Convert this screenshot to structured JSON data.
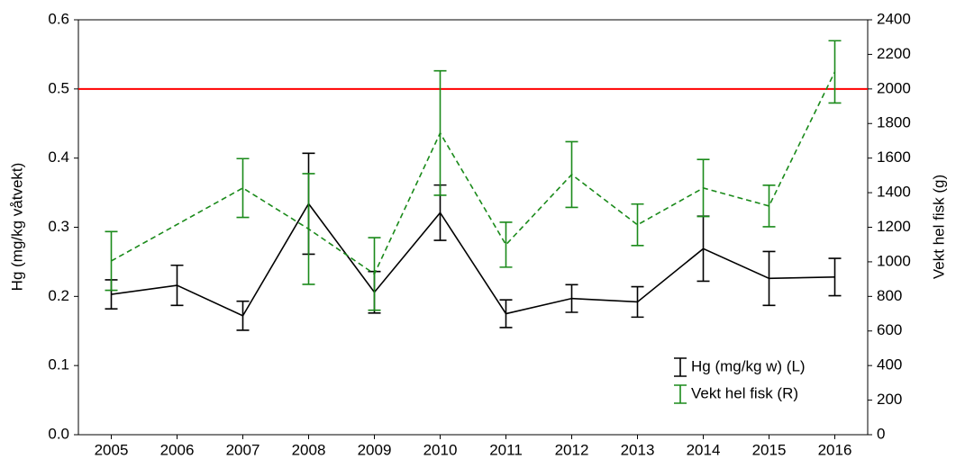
{
  "chart_data": {
    "type": "line",
    "x": [
      2005,
      2006,
      2007,
      2008,
      2009,
      2010,
      2011,
      2012,
      2013,
      2014,
      2015,
      2016
    ],
    "xlim": [
      2004.5,
      2016.5
    ],
    "ylabel": "Hg (mg/kg våtvekt)",
    "y2label": "Vekt hel fisk (g)",
    "ylim": [
      0,
      0.6
    ],
    "yticks": [
      {
        "value": 0,
        "label": "0.0"
      },
      0.1,
      0.2,
      0.3,
      0.4,
      0.5,
      0.6
    ],
    "y2lim": [
      0,
      2400
    ],
    "y2ticks": [
      0,
      200,
      400,
      600,
      800,
      1000,
      1200,
      1400,
      1600,
      1800,
      2000,
      2200,
      2400
    ],
    "hline": {
      "value": 0.5,
      "color": "#ff0000"
    },
    "legend": "lower right",
    "series": [
      {
        "name": "Hg (mg/kg w) (L)",
        "color": "#000000",
        "dash": false,
        "x": [
          2005,
          2006,
          2007,
          2008,
          2009,
          2010,
          2011,
          2012,
          2013,
          2014,
          2015,
          2016
        ],
        "values": [
          0.203,
          0.216,
          0.172,
          0.334,
          0.206,
          0.321,
          0.175,
          0.197,
          0.192,
          0.269,
          0.226,
          0.228
        ],
        "errors": [
          0.021,
          0.029,
          0.021,
          0.073,
          0.03,
          0.04,
          0.02,
          0.02,
          0.022,
          0.047,
          0.039,
          0.027
        ]
      },
      {
        "name": "Vekt hel fisk (R)",
        "color": "#1a8a1a",
        "dash": true,
        "axis": "y2",
        "x": [
          2005,
          2007,
          2008,
          2009,
          2010,
          2011,
          2012,
          2013,
          2014,
          2015,
          2016
        ],
        "values": [
          1005,
          1427,
          1190,
          930,
          1745,
          1099,
          1505,
          1214,
          1427,
          1323,
          2099
        ],
        "errors": [
          170,
          170,
          320,
          210,
          360,
          130,
          190,
          120,
          165,
          120,
          180
        ]
      }
    ]
  }
}
